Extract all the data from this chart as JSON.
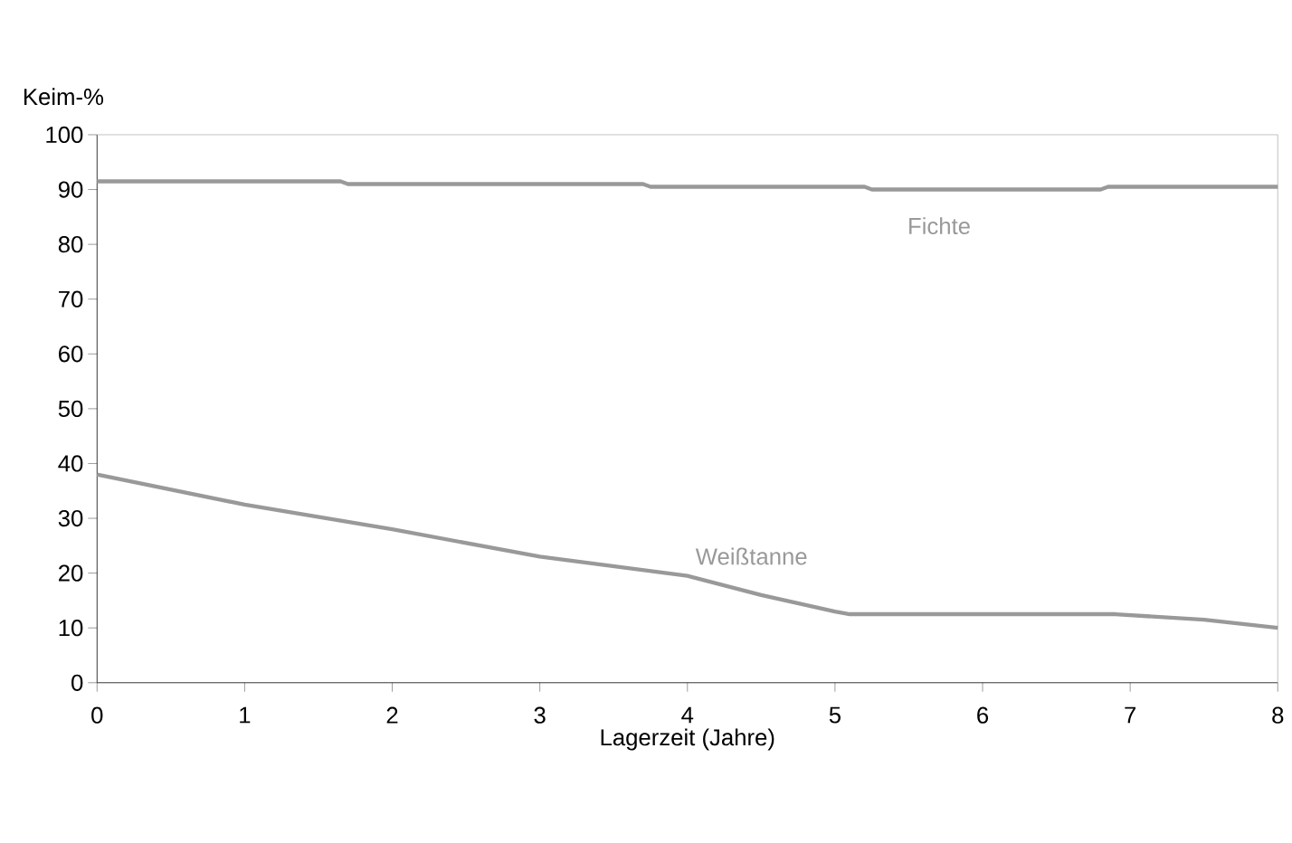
{
  "chart_data": {
    "type": "line",
    "xlabel": "Lagerzeit (Jahre)",
    "ylabel": "Keim-%",
    "xlim": [
      0,
      8
    ],
    "xticks": [
      0,
      1,
      2,
      3,
      4,
      5,
      6,
      7,
      8
    ],
    "ylim": [
      0,
      100
    ],
    "yticks": [
      0,
      10,
      20,
      30,
      40,
      50,
      60,
      70,
      80,
      90,
      100
    ],
    "grid": false,
    "marker": "none",
    "line_style": "solid",
    "series": [
      {
        "name": "Fichte",
        "color": "#999999",
        "x": [
          0,
          1.65,
          1.7,
          3.7,
          3.75,
          5.2,
          5.25,
          6.8,
          6.85,
          8
        ],
        "values": [
          91.5,
          91.5,
          91,
          91,
          90.5,
          90.5,
          90,
          90,
          90.5,
          90.5
        ]
      },
      {
        "name": "Weißtanne",
        "color": "#999999",
        "x": [
          0,
          1,
          2,
          3,
          4,
          4.5,
          5,
          5.1,
          6.9,
          7.5,
          8
        ],
        "values": [
          38,
          32.5,
          28,
          23,
          19.5,
          16,
          13,
          12.5,
          12.5,
          11.5,
          10
        ]
      }
    ]
  }
}
